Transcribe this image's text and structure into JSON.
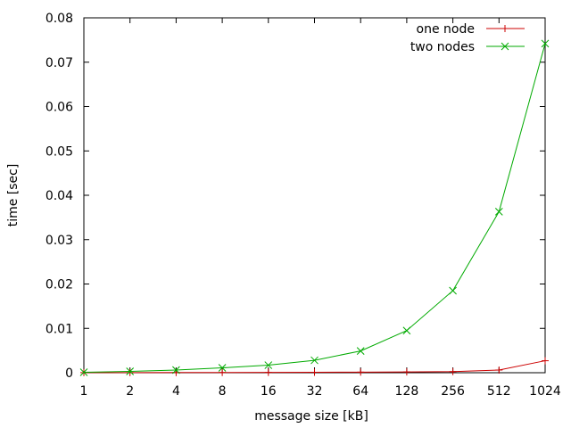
{
  "chart_data": {
    "type": "line",
    "xlabel": "message size [kB]",
    "ylabel": "time [sec]",
    "x_scale": "log2",
    "categories": [
      "1",
      "2",
      "4",
      "8",
      "16",
      "32",
      "64",
      "128",
      "256",
      "512",
      "1024"
    ],
    "x": [
      1,
      2,
      4,
      8,
      16,
      32,
      64,
      128,
      256,
      512,
      1024
    ],
    "y_ticks": [
      "0",
      "0.01",
      "0.02",
      "0.03",
      "0.04",
      "0.05",
      "0.06",
      "0.07",
      "0.08"
    ],
    "ylim": [
      0,
      0.08
    ],
    "grid": false,
    "legend_position": "top-right",
    "series": [
      {
        "name": "one node",
        "color": "#cc0000",
        "marker": "plus",
        "values": [
          2e-05,
          3e-05,
          4e-05,
          5e-05,
          7e-05,
          0.0001,
          0.00013,
          0.00018,
          0.00025,
          0.0006,
          0.0027
        ]
      },
      {
        "name": "two nodes",
        "color": "#00aa00",
        "marker": "cross",
        "values": [
          0.0001,
          0.0003,
          0.0006,
          0.0011,
          0.0017,
          0.0028,
          0.0049,
          0.0095,
          0.0185,
          0.0363,
          0.0742
        ]
      }
    ]
  }
}
